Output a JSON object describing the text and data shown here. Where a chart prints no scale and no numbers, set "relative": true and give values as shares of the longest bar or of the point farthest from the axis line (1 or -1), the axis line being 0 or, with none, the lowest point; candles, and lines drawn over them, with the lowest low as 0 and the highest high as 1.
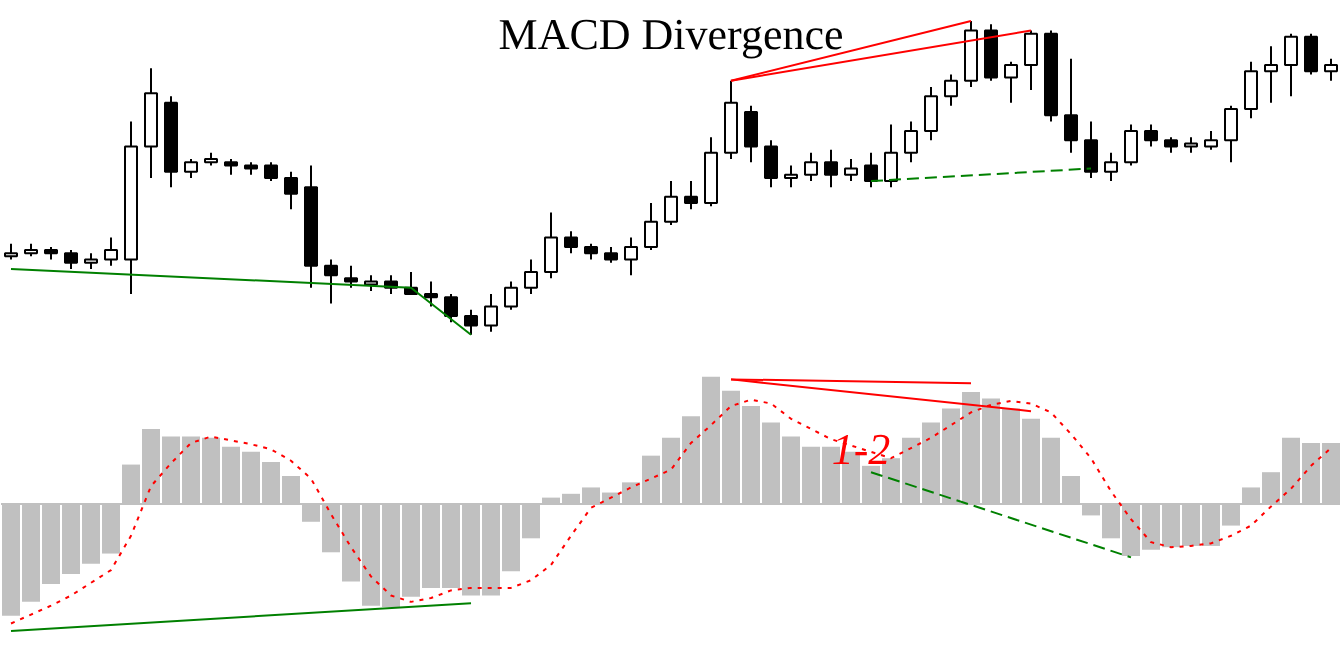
{
  "chart_data": [
    {
      "type": "candlestick",
      "title": "MACD Divergence",
      "relative": true,
      "tick_labels": false,
      "grid": false,
      "categories": [
        null,
        null,
        null,
        null,
        null,
        null,
        null,
        null,
        null,
        null,
        null,
        null,
        null,
        null,
        null,
        null,
        null,
        null,
        null,
        null,
        null,
        null,
        null,
        null,
        null,
        null,
        null,
        null,
        null,
        null,
        null,
        null,
        null,
        null,
        null,
        null,
        null,
        null,
        null,
        null,
        null,
        null,
        null,
        null,
        null,
        null,
        null,
        null,
        null,
        null,
        null,
        null,
        null,
        null,
        null,
        null,
        null,
        null,
        null,
        null,
        null,
        null,
        null,
        null,
        null,
        null,
        null
      ],
      "ohlc": [
        [
          0.25,
          0.29,
          0.24,
          0.26
        ],
        [
          0.26,
          0.29,
          0.25,
          0.27
        ],
        [
          0.27,
          0.28,
          0.24,
          0.26
        ],
        [
          0.26,
          0.27,
          0.21,
          0.23
        ],
        [
          0.23,
          0.26,
          0.21,
          0.24
        ],
        [
          0.24,
          0.31,
          0.22,
          0.27
        ],
        [
          0.24,
          0.68,
          0.13,
          0.6
        ],
        [
          0.6,
          0.85,
          0.5,
          0.77
        ],
        [
          0.74,
          0.76,
          0.47,
          0.52
        ],
        [
          0.52,
          0.56,
          0.5,
          0.55
        ],
        [
          0.55,
          0.58,
          0.54,
          0.56
        ],
        [
          0.55,
          0.56,
          0.51,
          0.54
        ],
        [
          0.54,
          0.55,
          0.51,
          0.53
        ],
        [
          0.54,
          0.55,
          0.49,
          0.5
        ],
        [
          0.5,
          0.52,
          0.4,
          0.45
        ],
        [
          0.47,
          0.54,
          0.15,
          0.22
        ],
        [
          0.22,
          0.24,
          0.1,
          0.19
        ],
        [
          0.18,
          0.22,
          0.15,
          0.17
        ],
        [
          0.16,
          0.19,
          0.14,
          0.17
        ],
        [
          0.17,
          0.19,
          0.13,
          0.15
        ],
        [
          0.15,
          0.2,
          0.13,
          0.13
        ],
        [
          0.13,
          0.17,
          0.09,
          0.12
        ],
        [
          0.12,
          0.13,
          0.04,
          0.06
        ],
        [
          0.06,
          0.08,
          0,
          0.03
        ],
        [
          0.03,
          0.13,
          0.01,
          0.09
        ],
        [
          0.09,
          0.17,
          0.08,
          0.15
        ],
        [
          0.15,
          0.24,
          0.13,
          0.2
        ],
        [
          0.2,
          0.39,
          0.18,
          0.31
        ],
        [
          0.31,
          0.33,
          0.26,
          0.28
        ],
        [
          0.28,
          0.29,
          0.24,
          0.26
        ],
        [
          0.26,
          0.28,
          0.23,
          0.24
        ],
        [
          0.24,
          0.31,
          0.19,
          0.28
        ],
        [
          0.28,
          0.42,
          0.27,
          0.36
        ],
        [
          0.36,
          0.49,
          0.35,
          0.44
        ],
        [
          0.44,
          0.49,
          0.4,
          0.42
        ],
        [
          0.42,
          0.63,
          0.41,
          0.58
        ],
        [
          0.58,
          0.81,
          0.56,
          0.74
        ],
        [
          0.71,
          0.73,
          0.55,
          0.6
        ],
        [
          0.6,
          0.62,
          0.47,
          0.5
        ],
        [
          0.5,
          0.54,
          0.47,
          0.51
        ],
        [
          0.51,
          0.58,
          0.49,
          0.55
        ],
        [
          0.55,
          0.59,
          0.47,
          0.51
        ],
        [
          0.51,
          0.56,
          0.49,
          0.53
        ],
        [
          0.54,
          0.58,
          0.47,
          0.49
        ],
        [
          0.49,
          0.67,
          0.47,
          0.58
        ],
        [
          0.58,
          0.68,
          0.55,
          0.65
        ],
        [
          0.65,
          0.79,
          0.62,
          0.76
        ],
        [
          0.76,
          0.83,
          0.73,
          0.81
        ],
        [
          0.81,
          1,
          0.79,
          0.97
        ],
        [
          0.97,
          0.99,
          0.81,
          0.82
        ],
        [
          0.82,
          0.87,
          0.74,
          0.86
        ],
        [
          0.86,
          0.97,
          0.78,
          0.96
        ],
        [
          0.96,
          0.97,
          0.68,
          0.7
        ],
        [
          0.7,
          0.88,
          0.58,
          0.62
        ],
        [
          0.62,
          0.68,
          0.5,
          0.52
        ],
        [
          0.52,
          0.58,
          0.49,
          0.55
        ],
        [
          0.55,
          0.67,
          0.54,
          0.65
        ],
        [
          0.65,
          0.67,
          0.6,
          0.62
        ],
        [
          0.62,
          0.63,
          0.58,
          0.6
        ],
        [
          0.6,
          0.63,
          0.58,
          0.61
        ],
        [
          0.6,
          0.65,
          0.59,
          0.62
        ],
        [
          0.62,
          0.73,
          0.55,
          0.72
        ],
        [
          0.72,
          0.87,
          0.69,
          0.84
        ],
        [
          0.84,
          0.92,
          0.74,
          0.86
        ],
        [
          0.86,
          0.96,
          0.76,
          0.95
        ],
        [
          0.95,
          0.96,
          0.83,
          0.84
        ],
        [
          0.84,
          0.88,
          0.81,
          0.86
        ]
      ],
      "series": [
        {
          "type": "line",
          "color": "#008000",
          "line_style": "solid",
          "values": [
            0.21,
            null,
            null,
            null,
            null,
            null,
            null,
            null,
            null,
            null,
            null,
            null,
            null,
            null,
            null,
            null,
            null,
            null,
            null,
            null,
            0.15,
            null,
            null,
            0,
            null,
            null,
            null,
            null,
            null,
            null,
            null,
            null,
            null,
            null,
            null,
            null,
            null,
            null,
            null,
            null,
            null,
            null,
            null,
            null,
            null,
            null,
            null,
            null,
            null,
            null,
            null,
            null,
            null,
            null,
            null,
            null,
            null,
            null,
            null,
            null,
            null,
            null,
            null,
            null,
            null,
            null,
            null
          ]
        },
        {
          "type": "line",
          "color": "#008000",
          "line_style": "dashed",
          "values": [
            null,
            null,
            null,
            null,
            null,
            null,
            null,
            null,
            null,
            null,
            null,
            null,
            null,
            null,
            null,
            null,
            null,
            null,
            null,
            null,
            null,
            null,
            null,
            null,
            null,
            null,
            null,
            null,
            null,
            null,
            null,
            null,
            null,
            null,
            null,
            null,
            null,
            null,
            null,
            null,
            null,
            null,
            null,
            0.49,
            null,
            null,
            null,
            null,
            null,
            null,
            null,
            null,
            null,
            null,
            0.53,
            null,
            null,
            null,
            null,
            null,
            null,
            null,
            null,
            null,
            null,
            null,
            null
          ]
        },
        {
          "type": "line",
          "color": "#ff0000",
          "line_style": "solid",
          "values": [
            null,
            null,
            null,
            null,
            null,
            null,
            null,
            null,
            null,
            null,
            null,
            null,
            null,
            null,
            null,
            null,
            null,
            null,
            null,
            null,
            null,
            null,
            null,
            null,
            null,
            null,
            null,
            null,
            null,
            null,
            null,
            null,
            null,
            null,
            null,
            null,
            0.81,
            null,
            null,
            null,
            null,
            null,
            null,
            null,
            null,
            null,
            null,
            null,
            1,
            null,
            null,
            null,
            null,
            null,
            null,
            null,
            null,
            null,
            null,
            null,
            null,
            null,
            null,
            null,
            null,
            null,
            null
          ]
        },
        {
          "type": "line",
          "color": "#ff0000",
          "line_style": "solid",
          "values": [
            null,
            null,
            null,
            null,
            null,
            null,
            null,
            null,
            null,
            null,
            null,
            null,
            null,
            null,
            null,
            null,
            null,
            null,
            null,
            null,
            null,
            null,
            null,
            null,
            null,
            null,
            null,
            null,
            null,
            null,
            null,
            null,
            null,
            null,
            null,
            null,
            0.81,
            null,
            null,
            null,
            null,
            null,
            null,
            null,
            null,
            null,
            null,
            null,
            null,
            null,
            null,
            0.97,
            null,
            null,
            null,
            null,
            null,
            null,
            null,
            null,
            null,
            null,
            null,
            null,
            null,
            null,
            null
          ]
        }
      ]
    },
    {
      "type": "bar",
      "relative": true,
      "tick_labels": false,
      "grid": false,
      "annotations": [
        "1-2"
      ],
      "categories": [
        null,
        null,
        null,
        null,
        null,
        null,
        null,
        null,
        null,
        null,
        null,
        null,
        null,
        null,
        null,
        null,
        null,
        null,
        null,
        null,
        null,
        null,
        null,
        null,
        null,
        null,
        null,
        null,
        null,
        null,
        null,
        null,
        null,
        null,
        null,
        null,
        null,
        null,
        null,
        null,
        null,
        null,
        null,
        null,
        null,
        null,
        null,
        null,
        null,
        null,
        null,
        null,
        null,
        null,
        null,
        null,
        null,
        null,
        null,
        null,
        null,
        null,
        null,
        null,
        null,
        null,
        null
      ],
      "series": [
        {
          "type": "bar",
          "color": "#c0c0c0",
          "values": [
            -0.88,
            -0.77,
            -0.63,
            -0.55,
            -0.47,
            -0.39,
            0.31,
            0.59,
            0.53,
            0.53,
            0.52,
            0.45,
            0.41,
            0.33,
            0.22,
            -0.14,
            -0.38,
            -0.61,
            -0.8,
            -0.81,
            -0.73,
            -0.66,
            -0.66,
            -0.72,
            -0.72,
            -0.53,
            -0.27,
            0.05,
            0.08,
            0.13,
            0.09,
            0.17,
            0.38,
            0.52,
            0.69,
            1,
            0.89,
            0.77,
            0.64,
            0.53,
            0.45,
            0.45,
            0.41,
            0.3,
            0.36,
            0.52,
            0.64,
            0.75,
            0.88,
            0.83,
            0.75,
            0.67,
            0.52,
            0.22,
            -0.09,
            -0.27,
            -0.41,
            -0.36,
            -0.34,
            -0.33,
            -0.33,
            -0.17,
            0.13,
            0.25,
            0.52,
            0.48,
            0.48
          ]
        },
        {
          "type": "line",
          "color": "#ff0000",
          "line_style": "dotted",
          "values": [
            -0.94,
            -0.87,
            -0.8,
            -0.72,
            -0.62,
            -0.52,
            -0.25,
            0.14,
            0.32,
            0.48,
            0.53,
            0.5,
            0.47,
            0.43,
            0.34,
            0.2,
            -0.08,
            -0.34,
            -0.57,
            -0.72,
            -0.77,
            -0.74,
            -0.68,
            -0.66,
            -0.66,
            -0.66,
            -0.6,
            -0.48,
            -0.25,
            -0.03,
            0.05,
            0.13,
            0.2,
            0.27,
            0.48,
            0.62,
            0.77,
            0.82,
            0.79,
            0.67,
            0.59,
            0.51,
            0.46,
            0.41,
            0.36,
            0.44,
            0.52,
            0.62,
            0.72,
            0.78,
            0.81,
            0.79,
            0.72,
            0.55,
            0.36,
            0.1,
            -0.12,
            -0.3,
            -0.34,
            -0.33,
            -0.31,
            -0.25,
            -0.17,
            -0.02,
            0.12,
            0.3,
            0.44
          ]
        },
        {
          "type": "line",
          "color": "#008000",
          "line_style": "solid",
          "values": [
            -1,
            null,
            null,
            null,
            null,
            null,
            null,
            null,
            null,
            null,
            null,
            null,
            null,
            null,
            null,
            null,
            null,
            null,
            null,
            null,
            null,
            null,
            null,
            -0.78,
            null,
            null,
            null,
            null,
            null,
            null,
            null,
            null,
            null,
            null,
            null,
            null,
            null,
            null,
            null,
            null,
            null,
            null,
            null,
            null,
            null,
            null,
            null,
            null,
            null,
            null,
            null,
            null,
            null,
            null,
            null,
            null,
            null,
            null,
            null,
            null,
            null,
            null,
            null,
            null,
            null,
            null,
            null
          ]
        },
        {
          "type": "line",
          "color": "#008000",
          "line_style": "dashed",
          "values": [
            null,
            null,
            null,
            null,
            null,
            null,
            null,
            null,
            null,
            null,
            null,
            null,
            null,
            null,
            null,
            null,
            null,
            null,
            null,
            null,
            null,
            null,
            null,
            null,
            null,
            null,
            null,
            null,
            null,
            null,
            null,
            null,
            null,
            null,
            null,
            null,
            null,
            null,
            null,
            null,
            null,
            null,
            null,
            0.25,
            null,
            null,
            null,
            null,
            null,
            null,
            null,
            null,
            null,
            null,
            null,
            null,
            -0.42,
            null,
            null,
            null,
            null,
            null,
            null,
            null,
            null,
            null,
            null
          ]
        },
        {
          "type": "line",
          "color": "#ff0000",
          "line_style": "solid",
          "values": [
            null,
            null,
            null,
            null,
            null,
            null,
            null,
            null,
            null,
            null,
            null,
            null,
            null,
            null,
            null,
            null,
            null,
            null,
            null,
            null,
            null,
            null,
            null,
            null,
            null,
            null,
            null,
            null,
            null,
            null,
            null,
            null,
            null,
            null,
            null,
            null,
            0.98,
            null,
            null,
            null,
            null,
            null,
            null,
            null,
            null,
            null,
            null,
            null,
            0.95,
            null,
            null,
            null,
            null,
            null,
            null,
            null,
            null,
            null,
            null,
            null,
            null,
            null,
            null,
            null,
            null,
            null,
            null
          ]
        },
        {
          "type": "line",
          "color": "#ff0000",
          "line_style": "solid",
          "values": [
            null,
            null,
            null,
            null,
            null,
            null,
            null,
            null,
            null,
            null,
            null,
            null,
            null,
            null,
            null,
            null,
            null,
            null,
            null,
            null,
            null,
            null,
            null,
            null,
            null,
            null,
            null,
            null,
            null,
            null,
            null,
            null,
            null,
            null,
            null,
            null,
            0.98,
            null,
            null,
            null,
            null,
            null,
            null,
            null,
            null,
            null,
            null,
            null,
            null,
            null,
            null,
            0.73,
            null,
            null,
            null,
            null,
            null,
            null,
            null,
            null,
            null,
            null,
            null,
            null,
            null,
            null,
            null
          ]
        }
      ]
    }
  ]
}
